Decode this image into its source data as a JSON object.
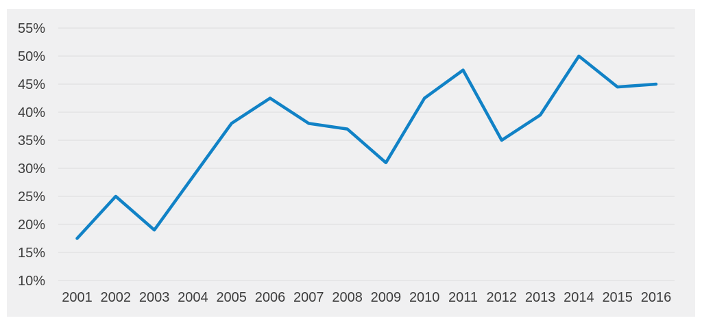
{
  "chart_data": {
    "type": "line",
    "title": "",
    "xlabel": "",
    "ylabel": "",
    "categories": [
      "2001",
      "2002",
      "2003",
      "2004",
      "2005",
      "2006",
      "2007",
      "2008",
      "2009",
      "2010",
      "2011",
      "2012",
      "2013",
      "2014",
      "2015",
      "2016"
    ],
    "values": [
      17.5,
      25,
      19,
      28.5,
      38,
      42.5,
      38,
      37,
      31,
      42.5,
      47.5,
      35,
      39.5,
      50,
      44.5,
      45
    ],
    "ylim": [
      10,
      55
    ],
    "ytick_step": 5,
    "ytick_labels": [
      "55%",
      "50%",
      "45%",
      "40%",
      "35%",
      "30%",
      "25%",
      "20%",
      "15%",
      "10%"
    ],
    "grid": "horizontal",
    "legend_position": "none",
    "colors": {
      "series_line": "#1182c6",
      "panel_background": "#f0f0f1",
      "gridline": "#dcdcdd",
      "tick_label": "#3d3d3d",
      "page_background": "#ffffff"
    }
  }
}
